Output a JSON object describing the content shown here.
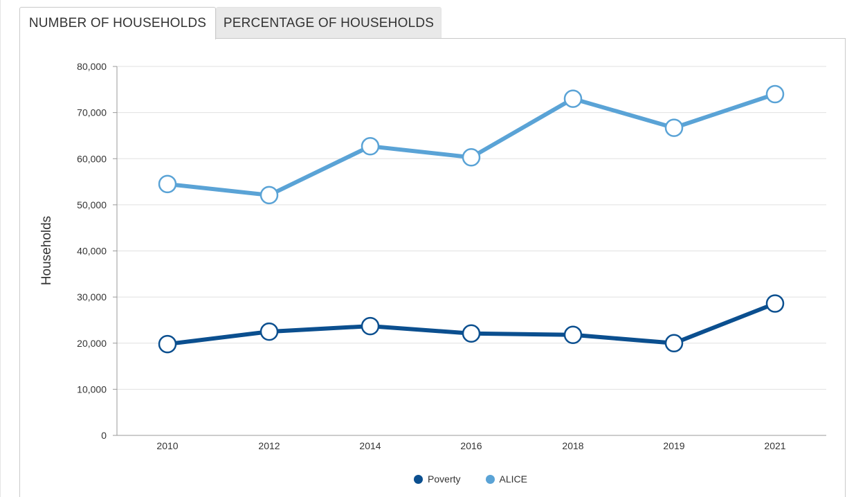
{
  "tabs": [
    {
      "label": "NUMBER OF HOUSEHOLDS",
      "active": true
    },
    {
      "label": "PERCENTAGE OF HOUSEHOLDS",
      "active": false
    }
  ],
  "colors": {
    "poverty": "#0b4f8f",
    "alice": "#5aa3d6",
    "grid": "#e0e0e0",
    "axis": "#999999"
  },
  "chart_data": {
    "type": "line",
    "categories": [
      "2010",
      "2012",
      "2014",
      "2016",
      "2018",
      "2019",
      "2021"
    ],
    "series": [
      {
        "name": "Poverty",
        "color": "#0b4f8f",
        "values": [
          19800,
          22500,
          23700,
          22100,
          21800,
          20000,
          28600
        ]
      },
      {
        "name": "ALICE",
        "color": "#5aa3d6",
        "values": [
          54500,
          52100,
          62700,
          60300,
          73000,
          66700,
          74000
        ]
      }
    ],
    "ylabel": "Households",
    "xlabel": "",
    "ylim": [
      0,
      80000
    ],
    "yticks": [
      "0",
      "10,000",
      "20,000",
      "30,000",
      "40,000",
      "50,000",
      "60,000",
      "70,000",
      "80,000"
    ],
    "grid": true,
    "legend_position": "bottom-center"
  }
}
